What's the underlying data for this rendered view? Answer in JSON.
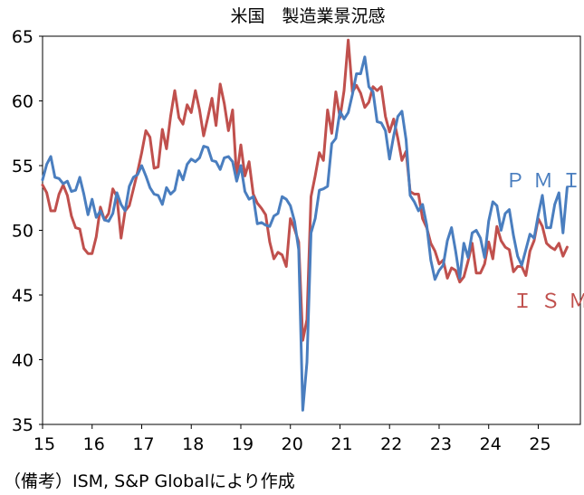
{
  "chart_data": {
    "type": "line",
    "title": "米国　製造業景況感",
    "note": "（備考）ISM, S&P Globalにより作成",
    "xlabel": "",
    "ylabel": "",
    "ylim": [
      35,
      65
    ],
    "yticks": [
      35,
      40,
      45,
      50,
      55,
      60,
      65
    ],
    "xlim": [
      2015.0,
      2025.85
    ],
    "xticks": [
      {
        "label": "15",
        "value": 2015.0
      },
      {
        "label": "16",
        "value": 2016.0
      },
      {
        "label": "17",
        "value": 2017.0
      },
      {
        "label": "18",
        "value": 2018.0
      },
      {
        "label": "19",
        "value": 2019.0
      },
      {
        "label": "20",
        "value": 2020.0
      },
      {
        "label": "21",
        "value": 2021.0
      },
      {
        "label": "22",
        "value": 2022.0
      },
      {
        "label": "23",
        "value": 2023.0
      },
      {
        "label": "24",
        "value": 2024.0
      },
      {
        "label": "25",
        "value": 2025.0
      }
    ],
    "grid": false,
    "legend": "inline labels at right end of each series",
    "series": [
      {
        "name": "ＰＭＩ",
        "color": "#4a7ebf",
        "start": "2015-01",
        "values": [
          53.9,
          55.1,
          55.7,
          54.1,
          54.0,
          53.6,
          53.8,
          53.0,
          53.1,
          54.1,
          52.8,
          51.2,
          52.4,
          51.0,
          51.5,
          50.8,
          50.7,
          51.3,
          52.9,
          52.0,
          51.5,
          53.4,
          54.1,
          54.3,
          55.0,
          54.2,
          53.3,
          52.8,
          52.7,
          52.0,
          53.3,
          52.8,
          53.1,
          54.6,
          53.9,
          55.1,
          55.5,
          55.3,
          55.6,
          56.5,
          56.4,
          55.4,
          55.3,
          54.7,
          55.6,
          55.7,
          55.3,
          53.8,
          55.0,
          53.0,
          52.4,
          52.6,
          50.5,
          50.6,
          50.4,
          50.3,
          51.1,
          51.3,
          52.6,
          52.4,
          51.9,
          50.7,
          48.5,
          36.1,
          39.8,
          49.8,
          50.9,
          53.1,
          53.2,
          53.4,
          56.7,
          57.1,
          59.2,
          58.6,
          59.1,
          60.5,
          62.1,
          62.1,
          63.4,
          61.1,
          60.7,
          58.4,
          58.3,
          57.7,
          55.5,
          57.3,
          58.8,
          59.2,
          57.0,
          52.7,
          52.2,
          51.5,
          52.0,
          50.4,
          47.7,
          46.2,
          46.9,
          47.3,
          49.2,
          50.2,
          48.4,
          46.3,
          49.0,
          47.9,
          49.8,
          50.0,
          49.4,
          47.9,
          50.7,
          52.2,
          51.9,
          50.0,
          51.3,
          51.6,
          49.6,
          48.0,
          47.3,
          48.5,
          49.7,
          49.4,
          51.2,
          52.7,
          50.2,
          50.2,
          52.0,
          52.9,
          49.8,
          53.3
        ]
      },
      {
        "name": "ＩＳＭ",
        "color": "#c0504d",
        "start": "2015-01",
        "values": [
          53.5,
          52.9,
          51.5,
          51.5,
          52.8,
          53.5,
          52.7,
          51.1,
          50.2,
          50.1,
          48.6,
          48.2,
          48.2,
          49.5,
          51.8,
          50.8,
          51.3,
          53.2,
          52.6,
          49.4,
          51.5,
          51.9,
          53.2,
          54.5,
          56.0,
          57.7,
          57.2,
          54.8,
          54.9,
          57.8,
          56.3,
          58.8,
          60.8,
          58.7,
          58.2,
          59.7,
          59.1,
          60.8,
          59.3,
          57.3,
          58.7,
          60.2,
          58.1,
          61.3,
          59.8,
          57.7,
          59.3,
          54.1,
          56.6,
          54.2,
          55.3,
          52.8,
          52.1,
          51.7,
          51.2,
          49.1,
          47.8,
          48.3,
          48.1,
          47.2,
          50.9,
          50.1,
          49.1,
          41.5,
          43.1,
          52.6,
          54.2,
          56.0,
          55.4,
          59.3,
          57.5,
          60.7,
          58.7,
          60.8,
          64.7,
          60.7,
          61.2,
          60.6,
          59.5,
          59.9,
          61.1,
          60.8,
          61.1,
          58.8,
          57.6,
          58.6,
          57.1,
          55.4,
          56.1,
          53.0,
          52.8,
          52.8,
          50.9,
          50.2,
          49.0,
          48.4,
          47.4,
          47.7,
          46.3,
          47.1,
          46.9,
          46.0,
          46.4,
          47.6,
          49.0,
          46.7,
          46.7,
          47.4,
          49.1,
          47.8,
          50.3,
          49.2,
          48.7,
          48.5,
          46.8,
          47.2,
          47.2,
          46.5,
          48.4,
          49.2,
          50.9,
          50.3,
          49.0,
          48.7,
          48.5,
          49.0,
          48.0,
          48.7
        ]
      }
    ]
  }
}
